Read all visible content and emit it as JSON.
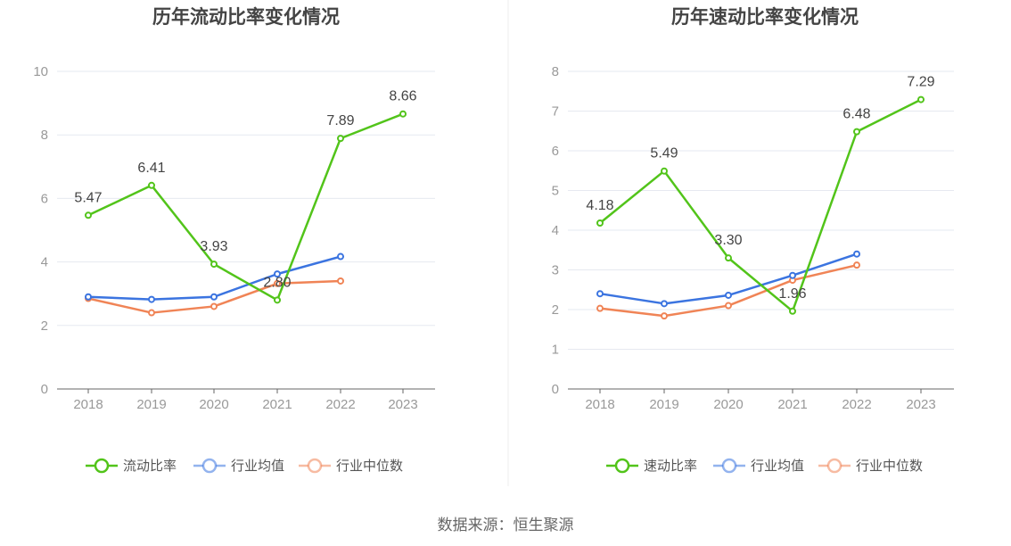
{
  "chart_data": [
    {
      "type": "line",
      "title": "历年流动比率变化情况",
      "categories": [
        "2018",
        "2019",
        "2020",
        "2021",
        "2022",
        "2023"
      ],
      "ylim": [
        0,
        10
      ],
      "yticks": [
        0,
        2,
        4,
        6,
        8,
        10
      ],
      "ytick_labels": [
        "0",
        "2",
        "4",
        "6",
        "8",
        "10"
      ],
      "series": [
        {
          "name": "流动比率",
          "color": "#52c41a",
          "values": [
            5.47,
            6.41,
            3.93,
            2.8,
            7.89,
            8.66
          ],
          "labels": [
            "5.47",
            "6.41",
            "3.93",
            "2.80",
            "7.89",
            "8.66"
          ]
        },
        {
          "name": "行业均值",
          "color": "#3b74e0",
          "values": [
            2.9,
            2.82,
            2.9,
            3.62,
            4.17,
            null
          ]
        },
        {
          "name": "行业中位数",
          "color": "#f08456",
          "values": [
            2.85,
            2.4,
            2.6,
            3.32,
            3.4,
            null
          ]
        }
      ]
    },
    {
      "type": "line",
      "title": "历年速动比率变化情况",
      "categories": [
        "2018",
        "2019",
        "2020",
        "2021",
        "2022",
        "2023"
      ],
      "ylim": [
        0,
        8
      ],
      "yticks": [
        0,
        1,
        2,
        3,
        4,
        5,
        6,
        7,
        8
      ],
      "ytick_labels": [
        "0",
        "1",
        "2",
        "3",
        "4",
        "5",
        "6",
        "7",
        "8"
      ],
      "series": [
        {
          "name": "速动比率",
          "color": "#52c41a",
          "values": [
            4.18,
            5.49,
            3.3,
            1.96,
            6.48,
            7.29
          ],
          "labels": [
            "4.18",
            "5.49",
            "3.30",
            "1.96",
            "6.48",
            "7.29"
          ]
        },
        {
          "name": "行业均值",
          "color": "#3b74e0",
          "values": [
            2.4,
            2.15,
            2.36,
            2.86,
            3.4,
            null
          ]
        },
        {
          "name": "行业中位数",
          "color": "#f08456",
          "values": [
            2.03,
            1.84,
            2.1,
            2.74,
            3.12,
            null
          ]
        }
      ]
    }
  ],
  "source": "数据来源：恒生聚源"
}
